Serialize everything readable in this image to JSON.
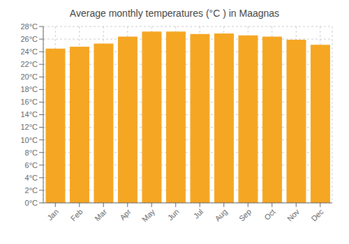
{
  "chart_data": {
    "type": "bar",
    "title": "Average monthly temperatures (°C ) in Maagnas",
    "categories": [
      "Jan",
      "Feb",
      "Mar",
      "Apr",
      "May",
      "Jun",
      "Jul",
      "Aug",
      "Sep",
      "Oct",
      "Nov",
      "Dec"
    ],
    "values": [
      24.5,
      24.8,
      25.3,
      26.4,
      27.2,
      27.2,
      26.8,
      26.9,
      26.6,
      26.4,
      25.9,
      25.1
    ],
    "color": "#F5A623",
    "ylim": [
      0,
      28
    ],
    "yticks": [
      {
        "value": 0,
        "label": "0°C"
      },
      {
        "value": 2,
        "label": "2°C"
      },
      {
        "value": 4,
        "label": "4°C"
      },
      {
        "value": 6,
        "label": "6°C"
      },
      {
        "value": 8,
        "label": "8°C"
      },
      {
        "value": 10,
        "label": "10°C"
      },
      {
        "value": 12,
        "label": "12°C"
      },
      {
        "value": 14,
        "label": "14°C"
      },
      {
        "value": 16,
        "label": "16°C"
      },
      {
        "value": 18,
        "label": "18°C"
      },
      {
        "value": 20,
        "label": "20°C"
      },
      {
        "value": 22,
        "label": "22°C"
      },
      {
        "value": 24,
        "label": "24°C"
      },
      {
        "value": 26,
        "label": "26°C"
      },
      {
        "value": 28,
        "label": "28°C"
      }
    ],
    "grid": true
  }
}
